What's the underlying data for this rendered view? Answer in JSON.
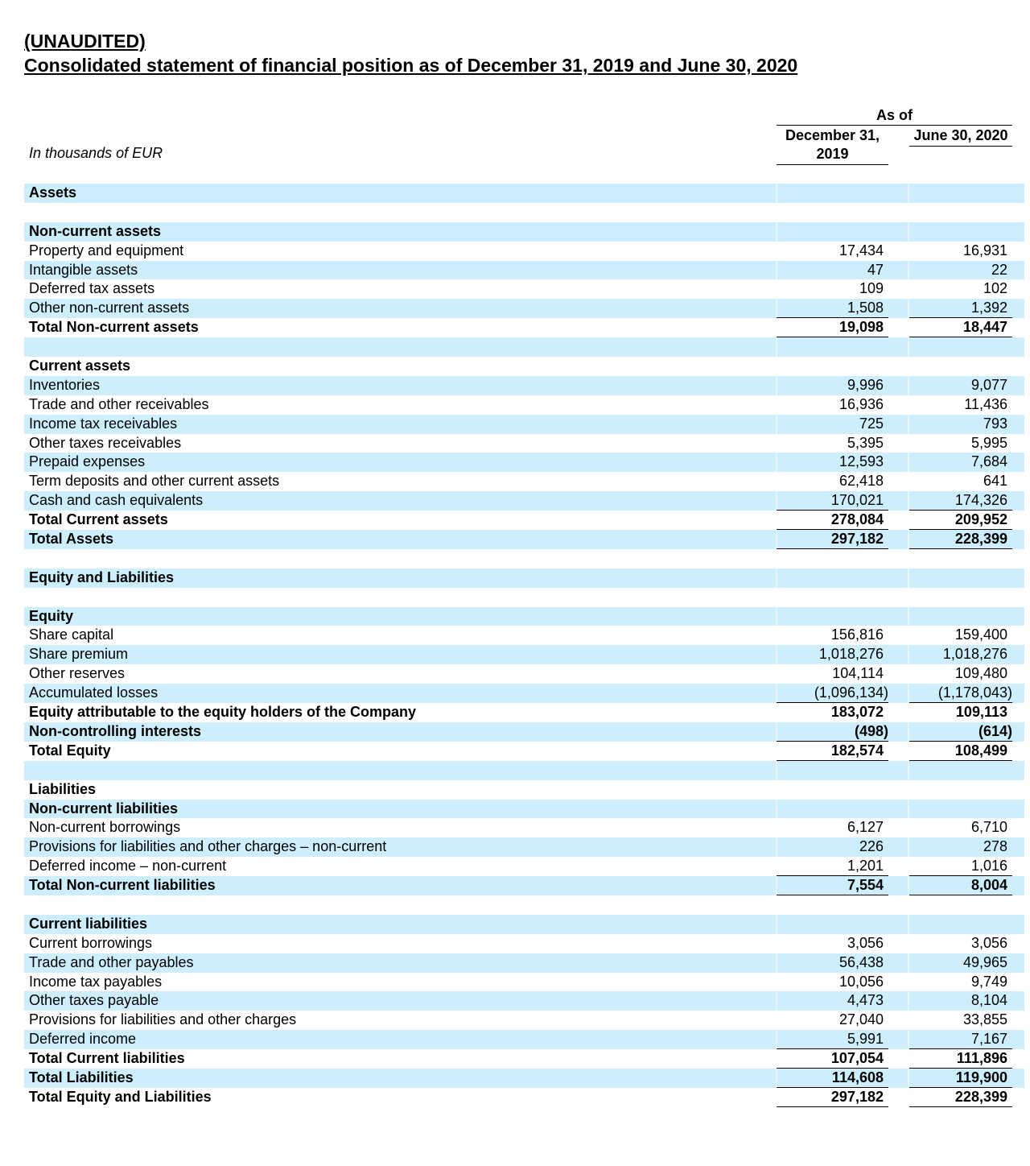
{
  "title": {
    "line1": "(UNAUDITED)",
    "line2": "Consolidated statement of financial position as of December 31, 2019 and June 30, 2020"
  },
  "header": {
    "as_of": "As of",
    "col1": "December 31, 2019",
    "col2": "June 30, 2020",
    "units": "In thousands of EUR"
  },
  "colors": {
    "shade": "#cdeefd"
  },
  "rows": [
    {
      "label": "Assets",
      "bold": true
    },
    {
      "label": ""
    },
    {
      "label": "Non-current assets",
      "bold": true
    },
    {
      "label": "Property and equipment",
      "v1": "17,434",
      "v2": "16,931"
    },
    {
      "label": "Intangible assets",
      "v1": "47",
      "v2": "22"
    },
    {
      "label": "Deferred tax assets",
      "v1": "109",
      "v2": "102"
    },
    {
      "label": "Other non-current assets",
      "v1": "1,508",
      "v2": "1,392",
      "ul": true
    },
    {
      "label": "Total Non-current assets",
      "v1": "19,098",
      "v2": "18,447",
      "bold": true,
      "ul": true
    },
    {
      "label": ""
    },
    {
      "label": "Current assets",
      "bold": true
    },
    {
      "label": "Inventories",
      "v1": "9,996",
      "v2": "9,077"
    },
    {
      "label": "Trade and other receivables",
      "v1": "16,936",
      "v2": "11,436"
    },
    {
      "label": "Income tax receivables",
      "v1": "725",
      "v2": "793"
    },
    {
      "label": "Other taxes receivables",
      "v1": "5,395",
      "v2": "5,995"
    },
    {
      "label": "Prepaid expenses",
      "v1": "12,593",
      "v2": "7,684"
    },
    {
      "label": "Term deposits and other current assets",
      "v1": "62,418",
      "v2": "641"
    },
    {
      "label": "Cash and cash equivalents",
      "v1": "170,021",
      "v2": "174,326",
      "ul": true
    },
    {
      "label": "Total Current assets",
      "v1": "278,084",
      "v2": "209,952",
      "bold": true,
      "ul": true
    },
    {
      "label": "Total Assets",
      "v1": "297,182",
      "v2": "228,399",
      "bold": true,
      "ul": true
    },
    {
      "label": ""
    },
    {
      "label": "Equity and Liabilities",
      "bold": true
    },
    {
      "label": ""
    },
    {
      "label": "Equity",
      "bold": true
    },
    {
      "label": "Share capital",
      "v1": "156,816",
      "v2": "159,400"
    },
    {
      "label": "Share premium",
      "v1": "1,018,276",
      "v2": "1,018,276"
    },
    {
      "label": "Other reserves",
      "v1": "104,114",
      "v2": "109,480"
    },
    {
      "label": "Accumulated losses",
      "v1": "(1,096,134)",
      "v2": "(1,178,043)",
      "ul": true
    },
    {
      "label": "Equity attributable to the equity holders of the Company",
      "v1": "183,072",
      "v2": "109,113",
      "bold": true
    },
    {
      "label": "Non-controlling interests",
      "v1": "(498)",
      "v2": "(614)",
      "bold": true,
      "ul": true
    },
    {
      "label": "Total Equity",
      "v1": "182,574",
      "v2": "108,499",
      "bold": true,
      "ul": true
    },
    {
      "label": ""
    },
    {
      "label": "Liabilities",
      "bold": true
    },
    {
      "label": "Non-current liabilities",
      "bold": true
    },
    {
      "label": "Non-current borrowings",
      "v1": "6,127",
      "v2": "6,710"
    },
    {
      "label": "Provisions for liabilities and other charges – non-current",
      "v1": "226",
      "v2": "278"
    },
    {
      "label": "Deferred income – non-current",
      "v1": "1,201",
      "v2": "1,016",
      "ul": true
    },
    {
      "label": "Total Non-current liabilities",
      "v1": "7,554",
      "v2": "8,004",
      "bold": true,
      "ul": true
    },
    {
      "label": ""
    },
    {
      "label": "Current liabilities",
      "bold": true
    },
    {
      "label": "Current borrowings",
      "v1": "3,056",
      "v2": "3,056"
    },
    {
      "label": "Trade and other payables",
      "v1": "56,438",
      "v2": "49,965"
    },
    {
      "label": "Income tax payables",
      "v1": "10,056",
      "v2": "9,749"
    },
    {
      "label": "Other taxes payable",
      "v1": "4,473",
      "v2": "8,104"
    },
    {
      "label": "Provisions for liabilities and other charges",
      "v1": "27,040",
      "v2": "33,855"
    },
    {
      "label": "Deferred income",
      "v1": "5,991",
      "v2": "7,167",
      "ul": true
    },
    {
      "label": "Total Current liabilities",
      "v1": "107,054",
      "v2": "111,896",
      "bold": true,
      "ul": true
    },
    {
      "label": "Total Liabilities",
      "v1": "114,608",
      "v2": "119,900",
      "bold": true,
      "ul": true
    },
    {
      "label": "Total Equity and Liabilities",
      "v1": "297,182",
      "v2": "228,399",
      "bold": true,
      "ul": true
    }
  ]
}
